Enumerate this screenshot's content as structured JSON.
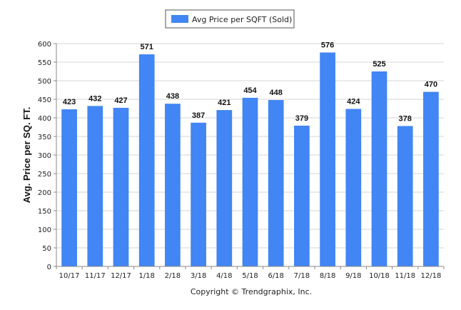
{
  "chart_data": {
    "type": "bar",
    "title": "",
    "xlabel": "",
    "ylabel": "Avg. Price per SQ. FT.",
    "ylim": [
      0,
      600
    ],
    "yticks": [
      0,
      50,
      100,
      150,
      200,
      250,
      300,
      350,
      400,
      450,
      500,
      550,
      600
    ],
    "grid": true,
    "legend_position": "top-center",
    "categories": [
      "10/17",
      "11/17",
      "12/17",
      "1/18",
      "2/18",
      "3/18",
      "4/18",
      "5/18",
      "6/18",
      "7/18",
      "8/18",
      "9/18",
      "10/18",
      "11/18",
      "12/18"
    ],
    "series": [
      {
        "name": "Avg Price per SQFT (Sold)",
        "color": "#4285f4",
        "values": [
          423,
          432,
          427,
          571,
          438,
          387,
          421,
          454,
          448,
          379,
          576,
          424,
          525,
          378,
          470
        ]
      }
    ]
  },
  "footer": {
    "credit": "Copyright © Trendgraphix, Inc."
  }
}
